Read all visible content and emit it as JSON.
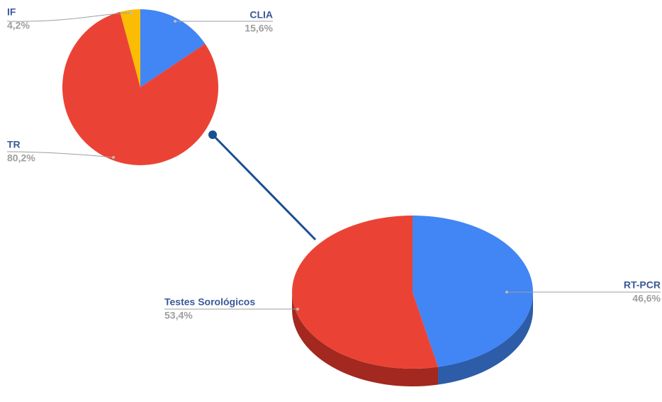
{
  "chart_data": [
    {
      "type": "pie",
      "categories": [
        "CLIA",
        "TR",
        "IF"
      ],
      "values": [
        15.6,
        80.2,
        4.2
      ],
      "value_labels": [
        "15,6%",
        "80,2%",
        "4,2%"
      ],
      "colors": [
        "#4285f4",
        "#ea4335",
        "#fbbc04"
      ]
    },
    {
      "type": "pie3d",
      "categories": [
        "RT-PCR",
        "Testes Sorológicos"
      ],
      "values": [
        46.6,
        53.4
      ],
      "value_labels": [
        "46,6%",
        "53,4%"
      ],
      "colors": [
        "#4285f4",
        "#ea4335"
      ],
      "side_colors": [
        "#2d5ca8",
        "#a3281f"
      ]
    }
  ]
}
